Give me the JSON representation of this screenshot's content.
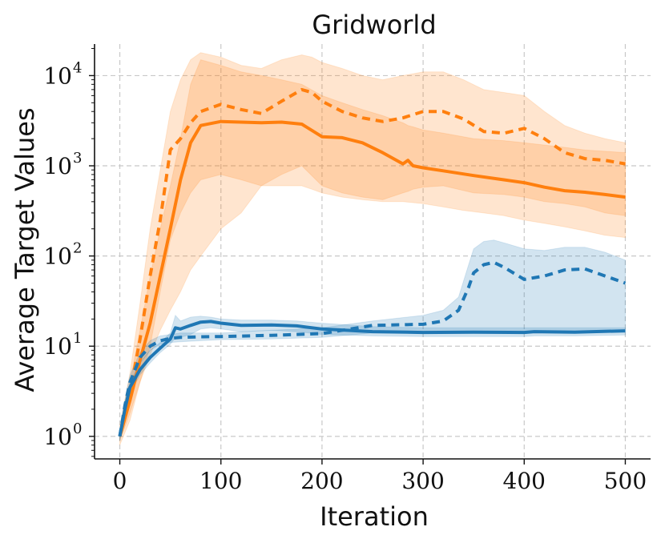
{
  "chart_data": {
    "type": "line",
    "title": "Gridworld",
    "xlabel": "Iteration",
    "ylabel": "Average Target Values",
    "xlim": [
      -25,
      525
    ],
    "ylim_log10": [
      -0.25,
      4.35
    ],
    "y_scale": "log",
    "grid": true,
    "xticks": [
      0,
      100,
      200,
      300,
      400,
      500
    ],
    "yticks": [
      {
        "value": 1,
        "base": "10",
        "exp": "0"
      },
      {
        "value": 10,
        "base": "10",
        "exp": "1"
      },
      {
        "value": 100,
        "base": "10",
        "exp": "2"
      },
      {
        "value": 1000,
        "base": "10",
        "exp": "3"
      },
      {
        "value": 10000,
        "base": "10",
        "exp": "4"
      }
    ],
    "series": [
      {
        "name": "orange-solid",
        "color": "#ff7f0e",
        "dash": "solid",
        "x": [
          0,
          10,
          20,
          30,
          40,
          50,
          60,
          70,
          80,
          100,
          120,
          140,
          160,
          180,
          200,
          220,
          240,
          260,
          280,
          285,
          290,
          300,
          320,
          350,
          380,
          400,
          420,
          440,
          460,
          480,
          500
        ],
        "y": [
          1,
          2.5,
          7,
          18,
          60,
          200,
          700,
          1800,
          2800,
          3100,
          3050,
          3000,
          3050,
          2900,
          2100,
          2050,
          1800,
          1400,
          1050,
          1150,
          1000,
          950,
          880,
          780,
          700,
          650,
          580,
          530,
          510,
          480,
          450
        ],
        "band_upper": [
          1.2,
          4,
          15,
          60,
          200,
          600,
          2000,
          8000,
          15000,
          13000,
          11000,
          10000,
          9000,
          8000,
          6000,
          5000,
          4200,
          3600,
          3000,
          2800,
          2700,
          2500,
          2300,
          2000,
          1900,
          1800,
          1700,
          1600,
          1500,
          1450,
          1400
        ],
        "band_lower": [
          0.9,
          1.8,
          4,
          8,
          15,
          25,
          40,
          70,
          100,
          200,
          300,
          600,
          800,
          1000,
          600,
          500,
          450,
          420,
          500,
          520,
          550,
          580,
          600,
          500,
          480,
          450,
          400,
          380,
          350,
          300,
          280
        ]
      },
      {
        "name": "orange-dashed",
        "color": "#ff7f0e",
        "dash": "dashed",
        "x": [
          0,
          10,
          20,
          30,
          40,
          50,
          60,
          70,
          80,
          100,
          120,
          140,
          160,
          180,
          190,
          200,
          220,
          240,
          260,
          280,
          300,
          320,
          340,
          360,
          380,
          400,
          420,
          440,
          460,
          480,
          500
        ],
        "y": [
          1,
          3,
          12,
          60,
          250,
          1500,
          2000,
          3000,
          4000,
          4800,
          4200,
          3800,
          5200,
          7000,
          6500,
          5200,
          4000,
          3400,
          3100,
          3400,
          4000,
          4000,
          3300,
          2400,
          2300,
          2600,
          2000,
          1400,
          1200,
          1150,
          1050
        ],
        "band_upper": [
          1.3,
          5,
          30,
          200,
          900,
          4000,
          9000,
          15000,
          18000,
          16000,
          13000,
          12000,
          15000,
          17000,
          16000,
          14000,
          12000,
          10000,
          9000,
          10000,
          11000,
          11000,
          9000,
          7000,
          6500,
          6000,
          4000,
          2800,
          2300,
          2000,
          1800
        ],
        "band_lower": [
          0.8,
          1.5,
          4,
          10,
          40,
          150,
          300,
          500,
          700,
          800,
          700,
          600,
          600,
          600,
          550,
          500,
          450,
          420,
          400,
          400,
          380,
          350,
          320,
          300,
          280,
          250,
          230,
          210,
          190,
          170,
          160
        ]
      },
      {
        "name": "blue-solid",
        "color": "#1f77b4",
        "dash": "solid",
        "x": [
          0,
          5,
          10,
          20,
          30,
          40,
          50,
          55,
          60,
          70,
          80,
          90,
          100,
          120,
          150,
          175,
          200,
          250,
          300,
          350,
          400,
          410,
          450,
          500
        ],
        "y": [
          1,
          2,
          3.5,
          5.5,
          7.5,
          9.5,
          12,
          16,
          15.5,
          17,
          18.5,
          18.8,
          18,
          17,
          17.2,
          16.8,
          15.5,
          14.5,
          14.2,
          14.3,
          14.2,
          14.5,
          14.3,
          14.8
        ],
        "band_upper": [
          1.1,
          2.3,
          4,
          6.5,
          9,
          11,
          14,
          22,
          19,
          21,
          21.5,
          21,
          20,
          19.5,
          19.5,
          19,
          18,
          16.5,
          16,
          16,
          16,
          16,
          16,
          16
        ],
        "band_lower": [
          0.9,
          1.7,
          3,
          4.8,
          6.5,
          8.5,
          10.5,
          12.5,
          12.5,
          13.5,
          15.5,
          16,
          15.5,
          14.5,
          15,
          14.5,
          13.5,
          13,
          12.8,
          12.8,
          12.8,
          13,
          13,
          13.3
        ]
      },
      {
        "name": "blue-dashed",
        "color": "#1f77b4",
        "dash": "dashed",
        "x": [
          0,
          5,
          10,
          20,
          30,
          40,
          50,
          60,
          80,
          100,
          150,
          200,
          250,
          300,
          320,
          335,
          345,
          350,
          360,
          370,
          380,
          400,
          420,
          440,
          460,
          480,
          500
        ],
        "y": [
          1,
          2.2,
          4,
          7.5,
          10,
          11.5,
          12.2,
          12.5,
          12.7,
          12.8,
          13.2,
          13.8,
          17,
          17.5,
          19,
          25,
          45,
          65,
          80,
          85,
          75,
          55,
          60,
          70,
          72,
          60,
          50
        ],
        "band_upper": [
          1.1,
          2.5,
          4.8,
          8.5,
          11.5,
          13,
          13.5,
          14,
          14,
          14,
          15,
          16,
          19,
          22,
          25,
          35,
          80,
          120,
          145,
          150,
          140,
          120,
          115,
          125,
          125,
          110,
          90
        ],
        "band_lower": [
          0.9,
          1.9,
          3.4,
          6.5,
          9,
          10.5,
          11,
          11.2,
          11.5,
          11.8,
          12,
          12.5,
          14,
          14,
          14.5,
          14.5,
          14.5,
          14.5,
          14.5,
          14.5,
          14.5,
          14.5,
          14.5,
          14.5,
          14.5,
          14.5,
          14.5
        ]
      }
    ]
  }
}
